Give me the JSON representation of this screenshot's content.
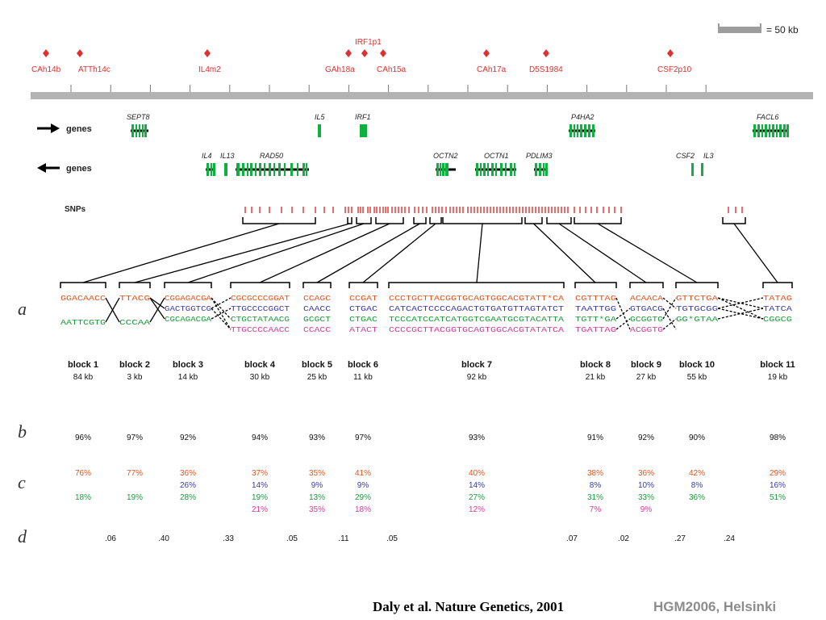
{
  "scale_label": "= 50 kb",
  "markers": [
    {
      "label": "CAh14b"
    },
    {
      "label": "ATTh14c"
    },
    {
      "label": "IL4m2"
    },
    {
      "label": "GAh18a"
    },
    {
      "label": "IRF1p1"
    },
    {
      "label": "CAh15a"
    },
    {
      "label": "CAh17a"
    },
    {
      "label": "D5S1984"
    },
    {
      "label": "CSF2p10"
    }
  ],
  "tracks": {
    "forward_label": "genes",
    "reverse_label": "genes",
    "snps_label": "SNPs"
  },
  "genes_forward": [
    "SEPT8",
    "IL5",
    "IRF1",
    "P4HA2",
    "FACL6"
  ],
  "genes_reverse": [
    "IL4",
    "IL13",
    "RAD50",
    "OCTN2",
    "OCTN1",
    "PDLIM3",
    "CSF2",
    "IL3"
  ],
  "row_letters": [
    "a",
    "b",
    "c",
    "d"
  ],
  "blocks": [
    {
      "name": "block 1",
      "size": "84 kb",
      "b": "96%",
      "haps": [
        {
          "seq": "GGACAACC",
          "freq": "76%",
          "color": "#e0551f"
        },
        {
          "seq": "AATTCGTG",
          "freq": "18%",
          "color": "#1a9b3a"
        }
      ]
    },
    {
      "name": "block 2",
      "size": "3 kb",
      "b": "97%",
      "haps": [
        {
          "seq": "TTACG",
          "freq": "77%",
          "color": "#e0551f"
        },
        {
          "seq": "CCCAA",
          "freq": "19%",
          "color": "#1a9b3a"
        }
      ]
    },
    {
      "name": "block 3",
      "size": "14 kb",
      "b": "92%",
      "haps": [
        {
          "seq": "CGGAGACGA",
          "freq": "36%",
          "color": "#e0551f"
        },
        {
          "seq": "GACTGGTCG",
          "freq": "26%",
          "color": "#3a3aa8"
        },
        {
          "seq": "CGCAGACGA",
          "freq": "28%",
          "color": "#1a9b3a"
        }
      ]
    },
    {
      "name": "block 4",
      "size": "30 kb",
      "b": "94%",
      "haps": [
        {
          "seq": "CGCGCCCGGAT",
          "freq": "37%",
          "color": "#e0551f"
        },
        {
          "seq": "TTGCCCCGGCT",
          "freq": "14%",
          "color": "#3a3aa8"
        },
        {
          "seq": "CTGCTATAACG",
          "freq": "19%",
          "color": "#1a9b3a"
        },
        {
          "seq": "TTGCCCCAACC",
          "freq": "21%",
          "color": "#d63a9a"
        }
      ]
    },
    {
      "name": "block 5",
      "size": "25 kb",
      "b": "93%",
      "haps": [
        {
          "seq": "CCAGC",
          "freq": "35%",
          "color": "#e0551f"
        },
        {
          "seq": "CAACC",
          "freq": "9%",
          "color": "#3a3aa8"
        },
        {
          "seq": "GCGCT",
          "freq": "13%",
          "color": "#1a9b3a"
        },
        {
          "seq": "CCACC",
          "freq": "35%",
          "color": "#d63a9a"
        }
      ]
    },
    {
      "name": "block 6",
      "size": "11 kb",
      "b": "97%",
      "haps": [
        {
          "seq": "CCGAT",
          "freq": "41%",
          "color": "#e0551f"
        },
        {
          "seq": "CTGAC",
          "freq": "9%",
          "color": "#3a3aa8"
        },
        {
          "seq": "CTGAC",
          "freq": "29%",
          "color": "#1a9b3a"
        },
        {
          "seq": "ATACT",
          "freq": "18%",
          "color": "#d63a9a"
        }
      ]
    },
    {
      "name": "block 7",
      "size": "92 kb",
      "b": "93%",
      "haps": [
        {
          "seq": "CCCTGCTTACGGTGCAGTGGCACGTATT*CA",
          "freq": "40%",
          "color": "#e0551f"
        },
        {
          "seq": "CATCACTCCCCAGACTGTGATGTTAGTATCT",
          "freq": "14%",
          "color": "#3a3aa8"
        },
        {
          "seq": "TCCCATCCATCATGGTCGAATGCGTACATTA",
          "freq": "27%",
          "color": "#1a9b3a"
        },
        {
          "seq": "CCCCGCTTACGGTGCAGTGGCACGTATATCA",
          "freq": "12%",
          "color": "#d63a9a"
        }
      ]
    },
    {
      "name": "block 8",
      "size": "21 kb",
      "b": "91%",
      "haps": [
        {
          "seq": "CGTTTAG",
          "freq": "38%",
          "color": "#e0551f"
        },
        {
          "seq": "TAATTGG",
          "freq": "8%",
          "color": "#3a3aa8"
        },
        {
          "seq": "TGTT*GA",
          "freq": "31%",
          "color": "#1a9b3a"
        },
        {
          "seq": "TGATTAG",
          "freq": "7%",
          "color": "#d63a9a"
        }
      ]
    },
    {
      "name": "block 9",
      "size": "27 kb",
      "b": "92%",
      "haps": [
        {
          "seq": "ACAACA",
          "freq": "36%",
          "color": "#e0551f"
        },
        {
          "seq": "GTGACG",
          "freq": "10%",
          "color": "#3a3aa8"
        },
        {
          "seq": "GCGGTG",
          "freq": "33%",
          "color": "#1a9b3a"
        },
        {
          "seq": "ACGGTG",
          "freq": "9%",
          "color": "#d63a9a"
        }
      ]
    },
    {
      "name": "block 10",
      "size": "55 kb",
      "b": "90%",
      "haps": [
        {
          "seq": "GTTCTGA",
          "freq": "42%",
          "color": "#e0551f"
        },
        {
          "seq": "TGTGCGG",
          "freq": "8%",
          "color": "#3a3aa8"
        },
        {
          "seq": "GG*GTAA",
          "freq": "36%",
          "color": "#1a9b3a"
        }
      ]
    },
    {
      "name": "block 11",
      "size": "19 kb",
      "b": "98%",
      "haps": [
        {
          "seq": "TATAG",
          "freq": "29%",
          "color": "#e0551f"
        },
        {
          "seq": "TATCA",
          "freq": "16%",
          "color": "#3a3aa8"
        },
        {
          "seq": "CGGCG",
          "freq": "51%",
          "color": "#1a9b3a"
        }
      ]
    }
  ],
  "d_values": [
    ".06",
    ".40",
    ".33",
    ".05",
    ".11",
    ".05",
    ".07",
    ".02",
    ".27",
    ".24"
  ],
  "footer": {
    "citation": "Daly et al. Nature Genetics, 2001",
    "event": "HGM2006, Helsinki"
  },
  "colors": {
    "marker": "#e03030",
    "gene": "#10b040",
    "snp": "#e03030",
    "axis": "#b3b3b3"
  }
}
